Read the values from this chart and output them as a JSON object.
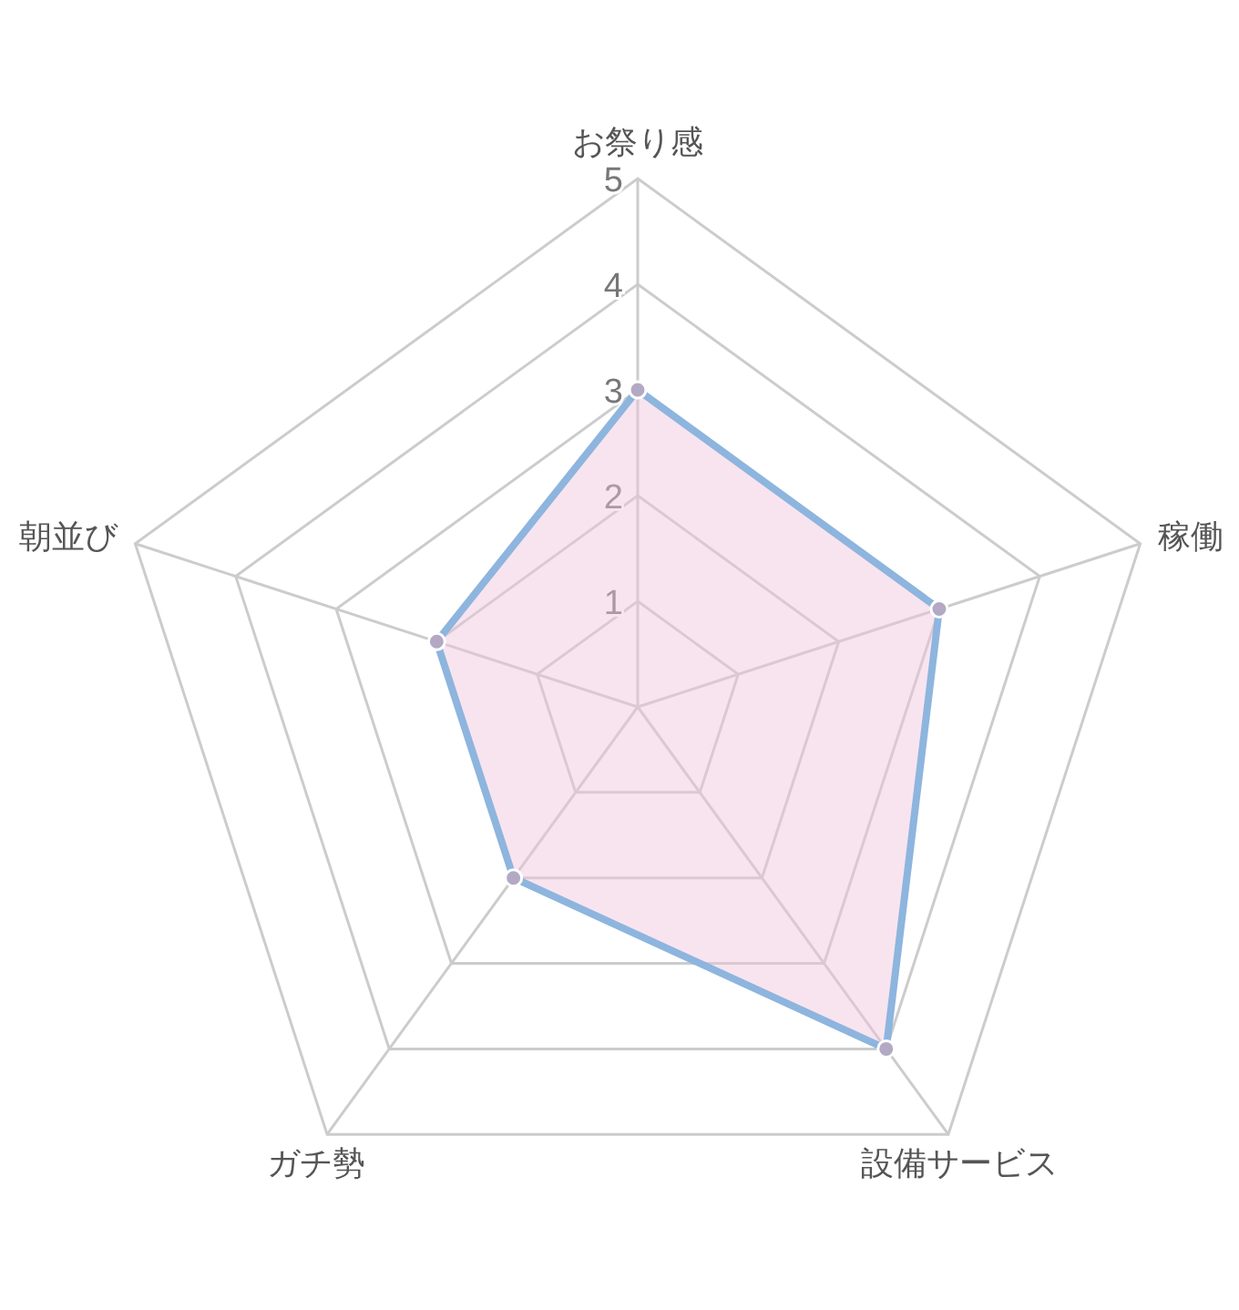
{
  "chart_data": {
    "type": "radar",
    "categories": [
      "お祭り感",
      "稼働",
      "設備サービス",
      "ガチ勢",
      "朝並び"
    ],
    "series": [
      {
        "color": "#8db5de",
        "values": [
          3,
          3,
          4,
          2,
          2
        ]
      }
    ],
    "ylim": [
      0,
      5
    ],
    "yticks": [
      1,
      2,
      3,
      4,
      5
    ],
    "grid": true,
    "marker": "circle"
  }
}
